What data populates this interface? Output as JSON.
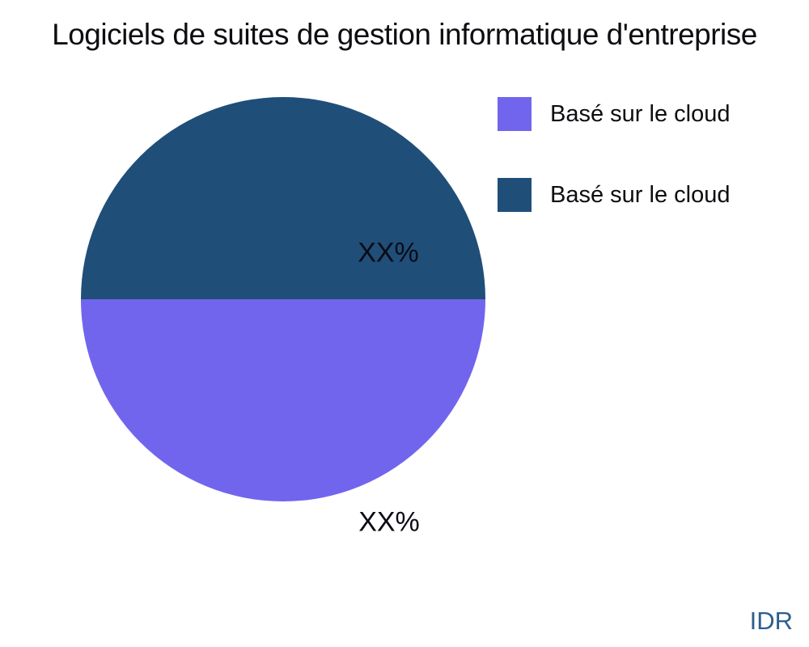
{
  "title": "Logiciels de suites de gestion informatique d'entreprise",
  "watermark": "IDR",
  "colors": {
    "slice_cloud_purple": "#7165ee",
    "slice_cloud_darkblue": "#1f4e79",
    "watermark_blue": "#2d5f8d",
    "text": "#0d0d12",
    "background": "#ffffff"
  },
  "chart_data": {
    "type": "pie",
    "title": "Logiciels de suites de gestion informatique d'entreprise",
    "start_angle": 180,
    "direction": "counterclockwise",
    "legend_position": "upper right",
    "slices": [
      {
        "label": "Basé sur le cloud",
        "value": 50,
        "display_value": "XX%",
        "color": "#7165ee",
        "position": "bottom-half"
      },
      {
        "label": "Basé sur le cloud",
        "value": 50,
        "display_value": "XX%",
        "color": "#1f4e79",
        "position": "top-half"
      }
    ]
  }
}
